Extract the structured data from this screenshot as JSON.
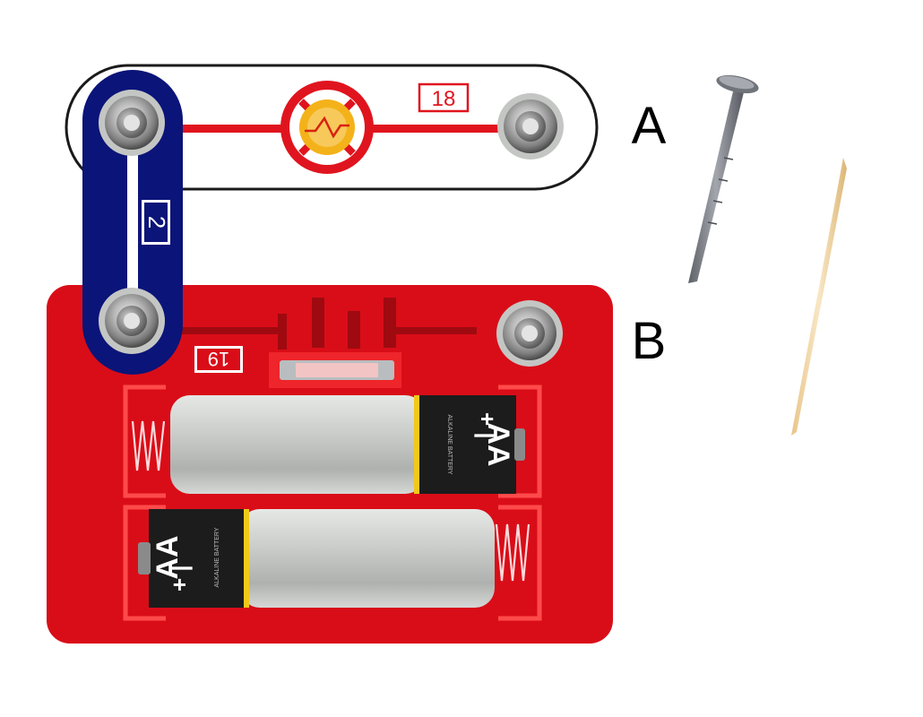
{
  "labels": {
    "point_a": "A",
    "point_b": "B"
  },
  "parts": {
    "lamp_number": "18",
    "wire_number": "2",
    "battery_number": "19"
  },
  "battery_text": {
    "size": "AA",
    "polarity": "+ |",
    "fine_print": "ALKALINE BATTERY"
  },
  "objects": {
    "nail": "nail-icon",
    "toothpick": "toothpick-icon"
  },
  "colors": {
    "battery_holder": "#d90d18",
    "snap_wire": "#0b1478",
    "trace": "#e0141e",
    "lamp_glow": "#f4b21a",
    "nail": "#7b7f86",
    "toothpick": "#efd3a0"
  }
}
